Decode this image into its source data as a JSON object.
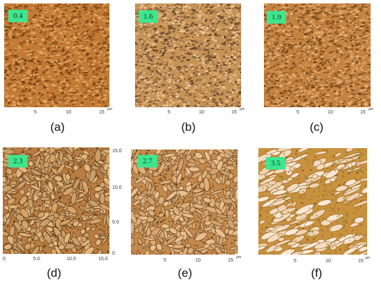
{
  "panels": [
    {
      "id": "a",
      "value": "0.4",
      "caption": "(a)",
      "ticks": [
        "5",
        "10",
        "15"
      ],
      "unit": "µm",
      "style": "fine"
    },
    {
      "id": "b",
      "value": "1.6",
      "caption": "(b)",
      "ticks": [
        "5",
        "10",
        "15"
      ],
      "unit": "µm",
      "style": "grainy"
    },
    {
      "id": "c",
      "value": "1.9",
      "caption": "(c)",
      "ticks": [
        "5",
        "10",
        "15"
      ],
      "unit": "µm",
      "style": "grainy2"
    },
    {
      "id": "d",
      "value": "2.3",
      "caption": "(d)",
      "ticks": [
        "0",
        "5.0",
        "10.0",
        "15.0"
      ],
      "side_ticks": [
        "15.0",
        "10.0",
        "5.0",
        "0"
      ],
      "unit": "",
      "style": "plates"
    },
    {
      "id": "e",
      "value": "2.7",
      "caption": "(e)",
      "ticks": [
        "5",
        "10",
        "15"
      ],
      "unit": "µm",
      "style": "plates2"
    },
    {
      "id": "f",
      "value": "3.5",
      "caption": "(f)",
      "ticks": [
        "5",
        "10",
        "15"
      ],
      "unit": "µm",
      "style": "light"
    }
  ],
  "colors": {
    "badge": "#3fe58e",
    "base": "#c9833a"
  }
}
